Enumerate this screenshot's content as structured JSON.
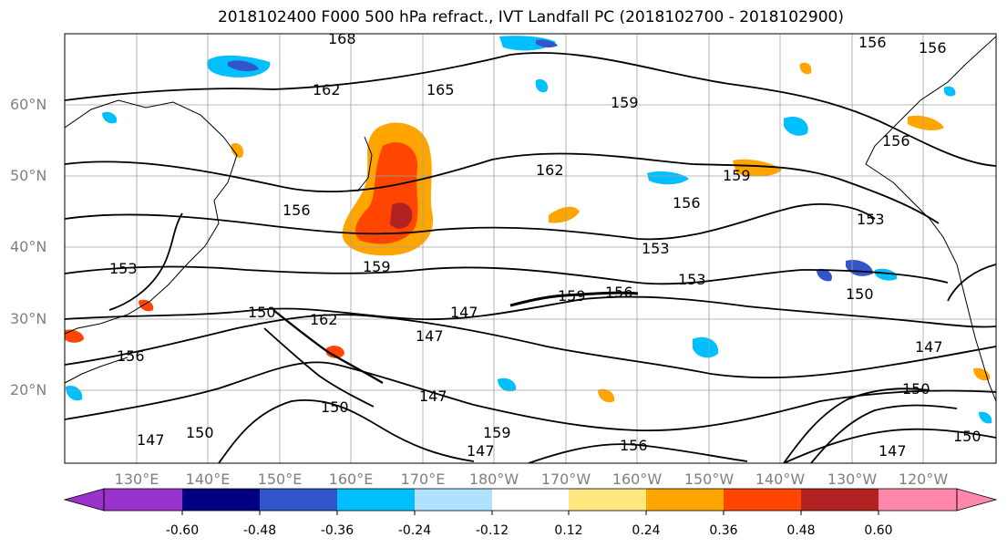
{
  "title": "2018102400 F000 500 hPa refract., IVT Landfall PC (2018102700 - 2018102900)",
  "map": {
    "lat_labels": [
      "60°N",
      "50°N",
      "40°N",
      "30°N",
      "20°N"
    ],
    "lon_labels": [
      "130°E",
      "140°E",
      "150°E",
      "160°E",
      "170°E",
      "180°W",
      "170°W",
      "160°W",
      "150°W",
      "140°W",
      "130°W",
      "120°W"
    ],
    "contour_labels": [
      "168",
      "162",
      "165",
      "159",
      "162",
      "159",
      "156",
      "156",
      "153",
      "153",
      "150",
      "147",
      "147",
      "156",
      "150",
      "159",
      "156",
      "153",
      "156",
      "150",
      "147",
      "150",
      "159",
      "147",
      "156",
      "156",
      "159",
      "162",
      "153",
      "150",
      "147",
      "156",
      "147",
      "150",
      "147"
    ]
  },
  "colorbar": {
    "ticks": [
      "-0.60",
      "-0.48",
      "-0.36",
      "-0.24",
      "-0.12",
      "0.12",
      "0.24",
      "0.36",
      "0.48",
      "0.60"
    ],
    "colors": [
      "#9933cc",
      "#000080",
      "#3355cc",
      "#00bfff",
      "#b0e2ff",
      "#ffffff",
      "#ffe680",
      "#ffa500",
      "#ff4500",
      "#b22222",
      "#ff88aa"
    ]
  },
  "colors": {
    "contour": "#000000",
    "grid": "#a0a0a0",
    "positive_mid": "#ffa500",
    "positive_strong": "#ff4500",
    "negative_mid": "#00bfff"
  }
}
